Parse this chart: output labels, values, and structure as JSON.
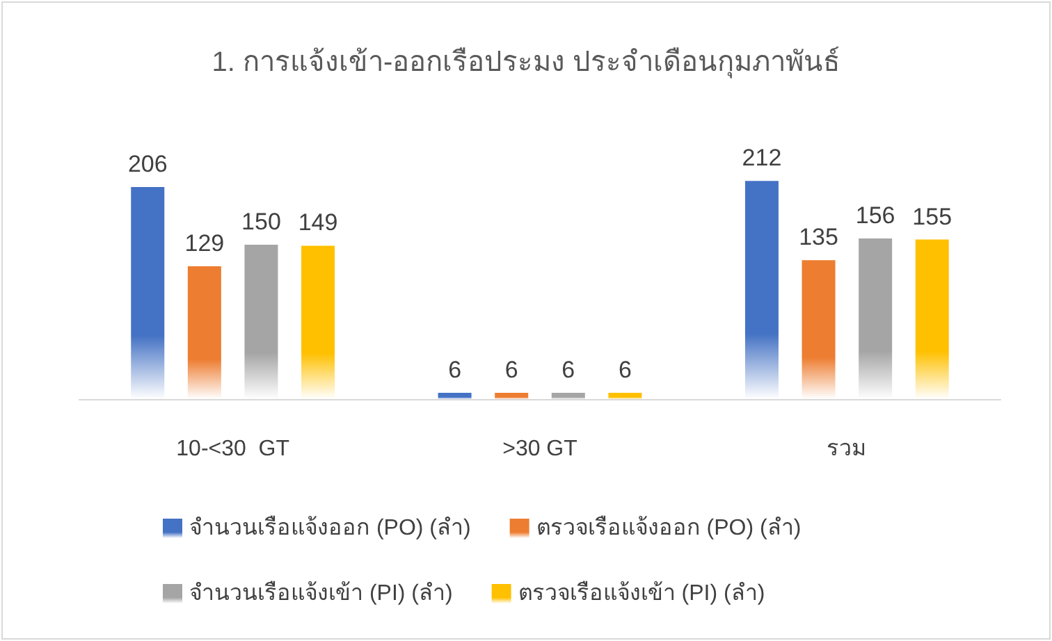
{
  "chart_data": {
    "type": "bar",
    "title": "1. การแจ้งเข้า-ออกเรือประมง ประจำเดือนกุมภาพันธ์",
    "categories": [
      "10-<30  GT",
      ">30 GT",
      "รวม"
    ],
    "series": [
      {
        "name": "จำนวนเรือแจ้งออก (PO) (ลำ)",
        "color": "#4472c4",
        "values": [
          206,
          6,
          212
        ]
      },
      {
        "name": "ตรวจเรือแจ้งออก (PO) (ลำ)",
        "color": "#ed7d31",
        "values": [
          129,
          6,
          135
        ]
      },
      {
        "name": "จำนวนเรือแจ้งเข้า (PI) (ลำ)",
        "color": "#a5a5a5",
        "values": [
          150,
          6,
          156
        ]
      },
      {
        "name": "ตรวจเรือแจ้งเข้า (PI) (ลำ)",
        "color": "#ffc000",
        "values": [
          149,
          6,
          155
        ]
      }
    ],
    "data_labels": true,
    "legend": "bottom"
  }
}
